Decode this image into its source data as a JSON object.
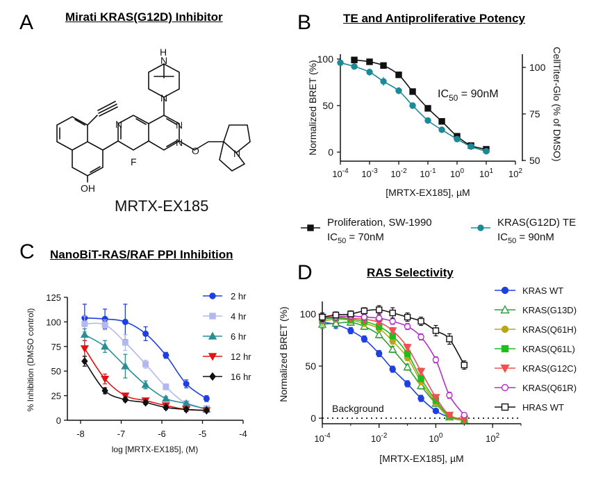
{
  "panels": {
    "A": {
      "letter": "A",
      "title": "Mirati KRAS(G12D) Inhibitor",
      "compound": "MRTX-EX185",
      "atoms": {
        "N_top": "H\nN",
        "N_pip": "N",
        "N1": "N",
        "N2": "N",
        "N3": "N",
        "F": "F",
        "O": "O",
        "OH": "OH",
        "N_pyr": "N"
      }
    },
    "B": {
      "letter": "B",
      "title": "TE and Antiproliferative Potency"
    },
    "C": {
      "letter": "C",
      "title": "NanoBiT-RAS/RAF PPI Inhibition"
    },
    "D": {
      "letter": "D",
      "title": "RAS Selectivity"
    }
  },
  "chart_data": [
    {
      "id": "B",
      "type": "line",
      "title": "TE and Antiproliferative Potency",
      "xlabel": "[MRTX-EX185], µM",
      "ylabel": "Normalized BRET (%)",
      "y2label": "CellTiter-Glo (% of DMSO)",
      "xscale": "log",
      "xlim": [
        0.0001,
        100
      ],
      "xticks": [
        "10",
        "10",
        "10",
        "10",
        "10",
        "10",
        "10"
      ],
      "xtick_exp": [
        "-4",
        "-3",
        "-2",
        "-1",
        "0",
        "1",
        "2"
      ],
      "ylim": [
        -8,
        110
      ],
      "yticks": [
        "0",
        "50",
        "100"
      ],
      "y2lim": [
        50,
        110
      ],
      "y2ticks": [
        "50",
        "75",
        "100"
      ],
      "annotation": {
        "text": "IC",
        "sub": "50",
        "tail": " = 90nM"
      },
      "series": [
        {
          "name": "Proliferation, SW-1990",
          "ic50": "IC50 = 70nM",
          "color": "#111111",
          "marker": "square",
          "axis": "right",
          "x": [
            0.0003,
            0.001,
            0.003,
            0.01,
            0.03,
            0.1,
            0.3,
            1,
            3,
            10
          ],
          "y": [
            104,
            103,
            101,
            96,
            87,
            78,
            71,
            63,
            58,
            56
          ],
          "err": [
            1.5,
            1.5,
            1.5,
            1.5,
            1.5,
            1.5,
            1,
            1,
            1,
            1
          ]
        },
        {
          "name": "KRAS(G12D) TE",
          "ic50": "IC50 = 90nM",
          "color": "#1a8a96",
          "marker": "circle",
          "axis": "left",
          "x": [
            0.0001,
            0.0003,
            0.001,
            0.003,
            0.01,
            0.03,
            0.1,
            0.3,
            1,
            3,
            10
          ],
          "y": [
            96,
            92,
            86,
            76,
            66,
            50,
            34,
            24,
            14,
            6,
            1
          ],
          "err": [
            2,
            2,
            4,
            5,
            4,
            3,
            3,
            2,
            2,
            2,
            2
          ]
        }
      ],
      "legend": [
        {
          "label": "Proliferation, SW-1990",
          "ic": "IC",
          "ic_sub": "50",
          "ic_tail": " = 70nM"
        },
        {
          "label": "KRAS(G12D) TE",
          "ic": "IC",
          "ic_sub": "50",
          "ic_tail": " = 90nM"
        }
      ]
    },
    {
      "id": "C",
      "type": "line",
      "title": "NanoBiT-RAS/RAF PPI Inhibition",
      "xlabel": "log [MRTX-EX185], (M)",
      "ylabel": "% Inhibition (DMSO control)",
      "xlim": [
        -8.4,
        -4
      ],
      "xticks": [
        "-8",
        "-7",
        "-6",
        "-5",
        "-4"
      ],
      "ylim": [
        0,
        125
      ],
      "yticks": [
        "0",
        "25",
        "50",
        "75",
        "100",
        "125"
      ],
      "series": [
        {
          "name": "2 hr",
          "color": "#1f3fe0",
          "marker": "circle",
          "x": [
            -7.9,
            -7.4,
            -6.9,
            -6.4,
            -5.9,
            -5.4,
            -4.9
          ],
          "y": [
            104,
            103,
            100,
            88,
            66,
            37,
            22
          ],
          "err": [
            14,
            10,
            18,
            7,
            3,
            4,
            3
          ]
        },
        {
          "name": "4 hr",
          "color": "#b3b8ee",
          "marker": "square",
          "x": [
            -7.9,
            -7.4,
            -6.9,
            -6.4,
            -5.9,
            -5.4,
            -4.9
          ],
          "y": [
            98,
            97,
            79,
            57,
            34,
            17,
            12
          ],
          "err": [
            8,
            5,
            8,
            4,
            3,
            2,
            2
          ]
        },
        {
          "name": "6 hr",
          "color": "#2a8e95",
          "marker": "triangle",
          "x": [
            -7.9,
            -7.4,
            -6.9,
            -6.4,
            -5.9,
            -5.4,
            -4.9
          ],
          "y": [
            87,
            75,
            55,
            36,
            22,
            17,
            11
          ],
          "err": [
            6,
            6,
            12,
            4,
            2,
            2,
            2
          ]
        },
        {
          "name": "12 hr",
          "color": "#e01414",
          "marker": "triangle-down",
          "x": [
            -7.9,
            -7.4,
            -6.9,
            -6.4,
            -5.9,
            -5.4,
            -4.9
          ],
          "y": [
            73,
            42,
            25,
            20,
            15,
            11,
            10
          ],
          "err": [
            8,
            5,
            2,
            2,
            2,
            2,
            2
          ]
        },
        {
          "name": "16 hr",
          "color": "#111111",
          "marker": "diamond",
          "x": [
            -7.9,
            -7.4,
            -6.9,
            -6.4,
            -5.9,
            -5.4,
            -4.9
          ],
          "y": [
            60,
            30,
            21,
            18,
            13,
            11,
            10
          ],
          "err": [
            5,
            3,
            2,
            2,
            2,
            2,
            1
          ]
        }
      ]
    },
    {
      "id": "D",
      "type": "line",
      "title": "RAS Selectivity",
      "xlabel": "[MRTX-EX185], µM",
      "ylabel": "Normalized BRET (%)",
      "xscale": "log",
      "xlim": [
        0.0001,
        1000
      ],
      "xticks": [
        "10",
        "10",
        "10",
        "10"
      ],
      "xtick_exp": [
        "-4",
        "-2",
        "0",
        "2"
      ],
      "ylim": [
        -18,
        112
      ],
      "yticks": [
        "0",
        "50",
        "100"
      ],
      "background_label": "Background",
      "series": [
        {
          "name": "KRAS WT",
          "color": "#1f3fe0",
          "marker": "circle",
          "open": false,
          "x": [
            0.0001,
            0.0003,
            0.001,
            0.003,
            0.01,
            0.03,
            0.1,
            0.3,
            1,
            3,
            10
          ],
          "y": [
            92,
            90,
            84,
            76,
            62,
            47,
            33,
            19,
            7,
            1,
            -1
          ],
          "err": [
            4,
            4,
            3,
            3,
            3,
            3,
            3,
            3,
            2,
            2,
            2
          ]
        },
        {
          "name": "KRAS(G13D)",
          "color": "#2e9e3a",
          "marker": "triangle",
          "open": true,
          "x": [
            0.0001,
            0.0003,
            0.001,
            0.003,
            0.01,
            0.03,
            0.1,
            0.3,
            1,
            3,
            10
          ],
          "y": [
            90,
            91,
            92,
            88,
            80,
            66,
            49,
            31,
            14,
            1,
            -2
          ],
          "err": [
            4,
            4,
            3,
            3,
            3,
            3,
            3,
            3,
            2,
            2,
            2
          ]
        },
        {
          "name": "KRAS(Q61H)",
          "color": "#b5a814",
          "marker": "circle",
          "open": false,
          "x": [
            0.0001,
            0.0003,
            0.001,
            0.003,
            0.01,
            0.03,
            0.1,
            0.3,
            1,
            3,
            10
          ],
          "y": [
            93,
            95,
            94,
            91,
            86,
            74,
            58,
            35,
            15,
            1,
            -2
          ],
          "err": [
            4,
            3,
            3,
            3,
            3,
            3,
            3,
            3,
            2,
            2,
            2
          ]
        },
        {
          "name": "KRAS(Q61L)",
          "color": "#1cbf1c",
          "marker": "square",
          "open": false,
          "x": [
            0.0001,
            0.0003,
            0.001,
            0.003,
            0.01,
            0.03,
            0.1,
            0.3,
            1,
            3,
            10
          ],
          "y": [
            95,
            96,
            95,
            93,
            88,
            79,
            62,
            38,
            17,
            2,
            -1
          ],
          "err": [
            4,
            3,
            3,
            3,
            3,
            3,
            3,
            3,
            2,
            2,
            2
          ]
        },
        {
          "name": "KRAS(G12C)",
          "color": "#f05050",
          "marker": "triangle-down",
          "open": false,
          "x": [
            0.0001,
            0.0003,
            0.001,
            0.003,
            0.01,
            0.03,
            0.1,
            0.3,
            1,
            3,
            10
          ],
          "y": [
            97,
            97,
            96,
            95,
            92,
            84,
            68,
            45,
            20,
            3,
            -1
          ],
          "err": [
            4,
            3,
            3,
            3,
            3,
            3,
            3,
            3,
            2,
            2,
            2
          ]
        },
        {
          "name": "KRAS(Q61R)",
          "color": "#b030c8",
          "marker": "circle",
          "open": true,
          "x": [
            0.0001,
            0.0003,
            0.001,
            0.003,
            0.01,
            0.03,
            0.1,
            0.3,
            1,
            3,
            10
          ],
          "y": [
            96,
            97,
            98,
            97,
            96,
            93,
            88,
            78,
            56,
            22,
            3
          ],
          "err": [
            4,
            3,
            3,
            3,
            3,
            3,
            3,
            3,
            3,
            3,
            2
          ]
        },
        {
          "name": "HRAS WT",
          "color": "#111111",
          "marker": "square",
          "open": true,
          "x": [
            0.0001,
            0.0003,
            0.001,
            0.003,
            0.01,
            0.03,
            0.1,
            0.3,
            1,
            3,
            10
          ],
          "y": [
            97,
            99,
            100,
            103,
            104,
            101,
            97,
            93,
            84,
            76,
            51
          ],
          "err": [
            4,
            3,
            3,
            3,
            4,
            5,
            4,
            4,
            5,
            5,
            4
          ]
        }
      ]
    }
  ]
}
